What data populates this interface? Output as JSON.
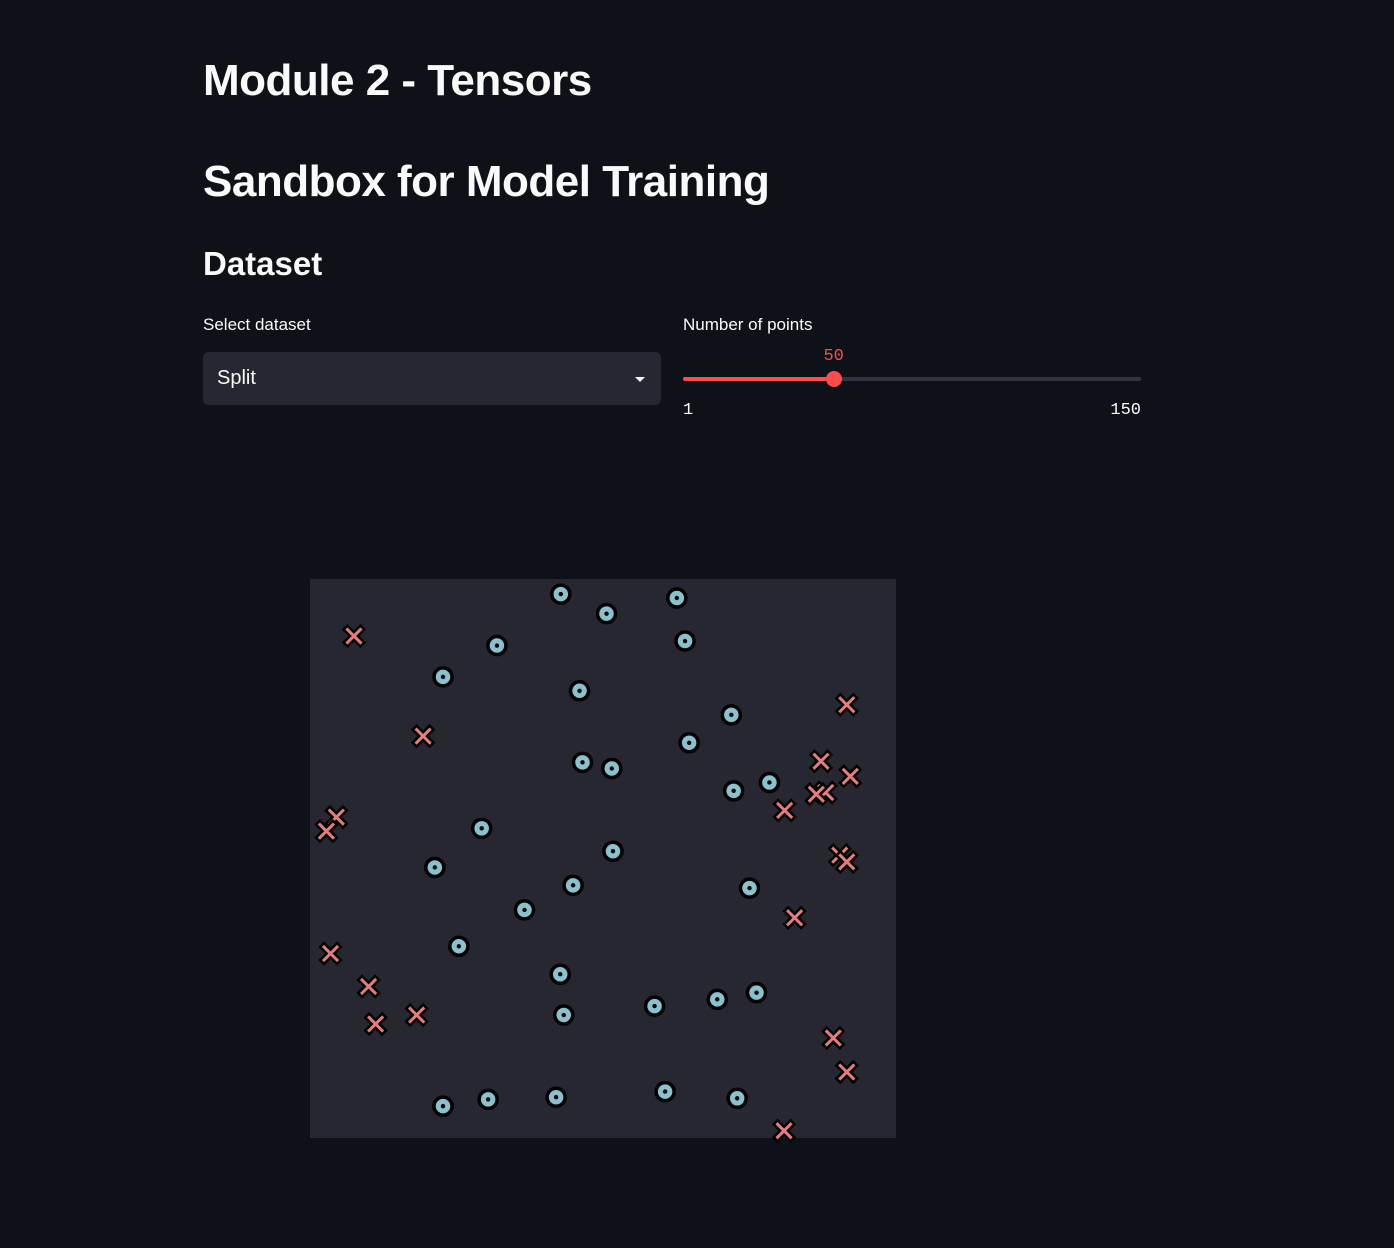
{
  "page": {
    "title": "Module 2 - Tensors",
    "subtitle": "Sandbox for Model Training",
    "section": "Dataset"
  },
  "dataset_select": {
    "label": "Select dataset",
    "value": "Split"
  },
  "points_slider": {
    "label": "Number of points",
    "value": "50",
    "min": "1",
    "max": "150",
    "fraction": 0.329
  },
  "colors": {
    "background": "#0e1117",
    "plot_background": "#262730",
    "accent": "#ff4b4b",
    "class_0": "#89c2cf",
    "class_1": "#e87b7b"
  },
  "chart_data": {
    "type": "scatter",
    "title": "",
    "xlabel": "",
    "ylabel": "",
    "xlim": [
      0,
      1
    ],
    "ylim": [
      0,
      1
    ],
    "grid": false,
    "series": [
      {
        "marker": "circle",
        "points": [
          [
            0.428,
            0.973
          ],
          [
            0.506,
            0.938
          ],
          [
            0.626,
            0.966
          ],
          [
            0.319,
            0.881
          ],
          [
            0.64,
            0.889
          ],
          [
            0.227,
            0.825
          ],
          [
            0.46,
            0.8
          ],
          [
            0.719,
            0.757
          ],
          [
            0.647,
            0.707
          ],
          [
            0.465,
            0.672
          ],
          [
            0.515,
            0.661
          ],
          [
            0.784,
            0.636
          ],
          [
            0.723,
            0.621
          ],
          [
            0.293,
            0.554
          ],
          [
            0.517,
            0.513
          ],
          [
            0.213,
            0.484
          ],
          [
            0.449,
            0.452
          ],
          [
            0.75,
            0.447
          ],
          [
            0.366,
            0.408
          ],
          [
            0.254,
            0.343
          ],
          [
            0.427,
            0.293
          ],
          [
            0.762,
            0.26
          ],
          [
            0.695,
            0.248
          ],
          [
            0.588,
            0.236
          ],
          [
            0.433,
            0.22
          ],
          [
            0.606,
            0.083
          ],
          [
            0.729,
            0.071
          ],
          [
            0.42,
            0.073
          ],
          [
            0.304,
            0.069
          ],
          [
            0.227,
            0.057
          ]
        ]
      },
      {
        "marker": "cross",
        "points": [
          [
            0.075,
            0.898
          ],
          [
            0.916,
            0.775
          ],
          [
            0.193,
            0.719
          ],
          [
            0.872,
            0.674
          ],
          [
            0.922,
            0.647
          ],
          [
            0.88,
            0.618
          ],
          [
            0.864,
            0.615
          ],
          [
            0.81,
            0.586
          ],
          [
            0.045,
            0.574
          ],
          [
            0.028,
            0.549
          ],
          [
            0.904,
            0.506
          ],
          [
            0.916,
            0.494
          ],
          [
            0.827,
            0.394
          ],
          [
            0.035,
            0.33
          ],
          [
            0.1,
            0.271
          ],
          [
            0.182,
            0.22
          ],
          [
            0.112,
            0.204
          ],
          [
            0.893,
            0.179
          ],
          [
            0.916,
            0.118
          ],
          [
            0.809,
            0.013
          ]
        ]
      }
    ]
  }
}
